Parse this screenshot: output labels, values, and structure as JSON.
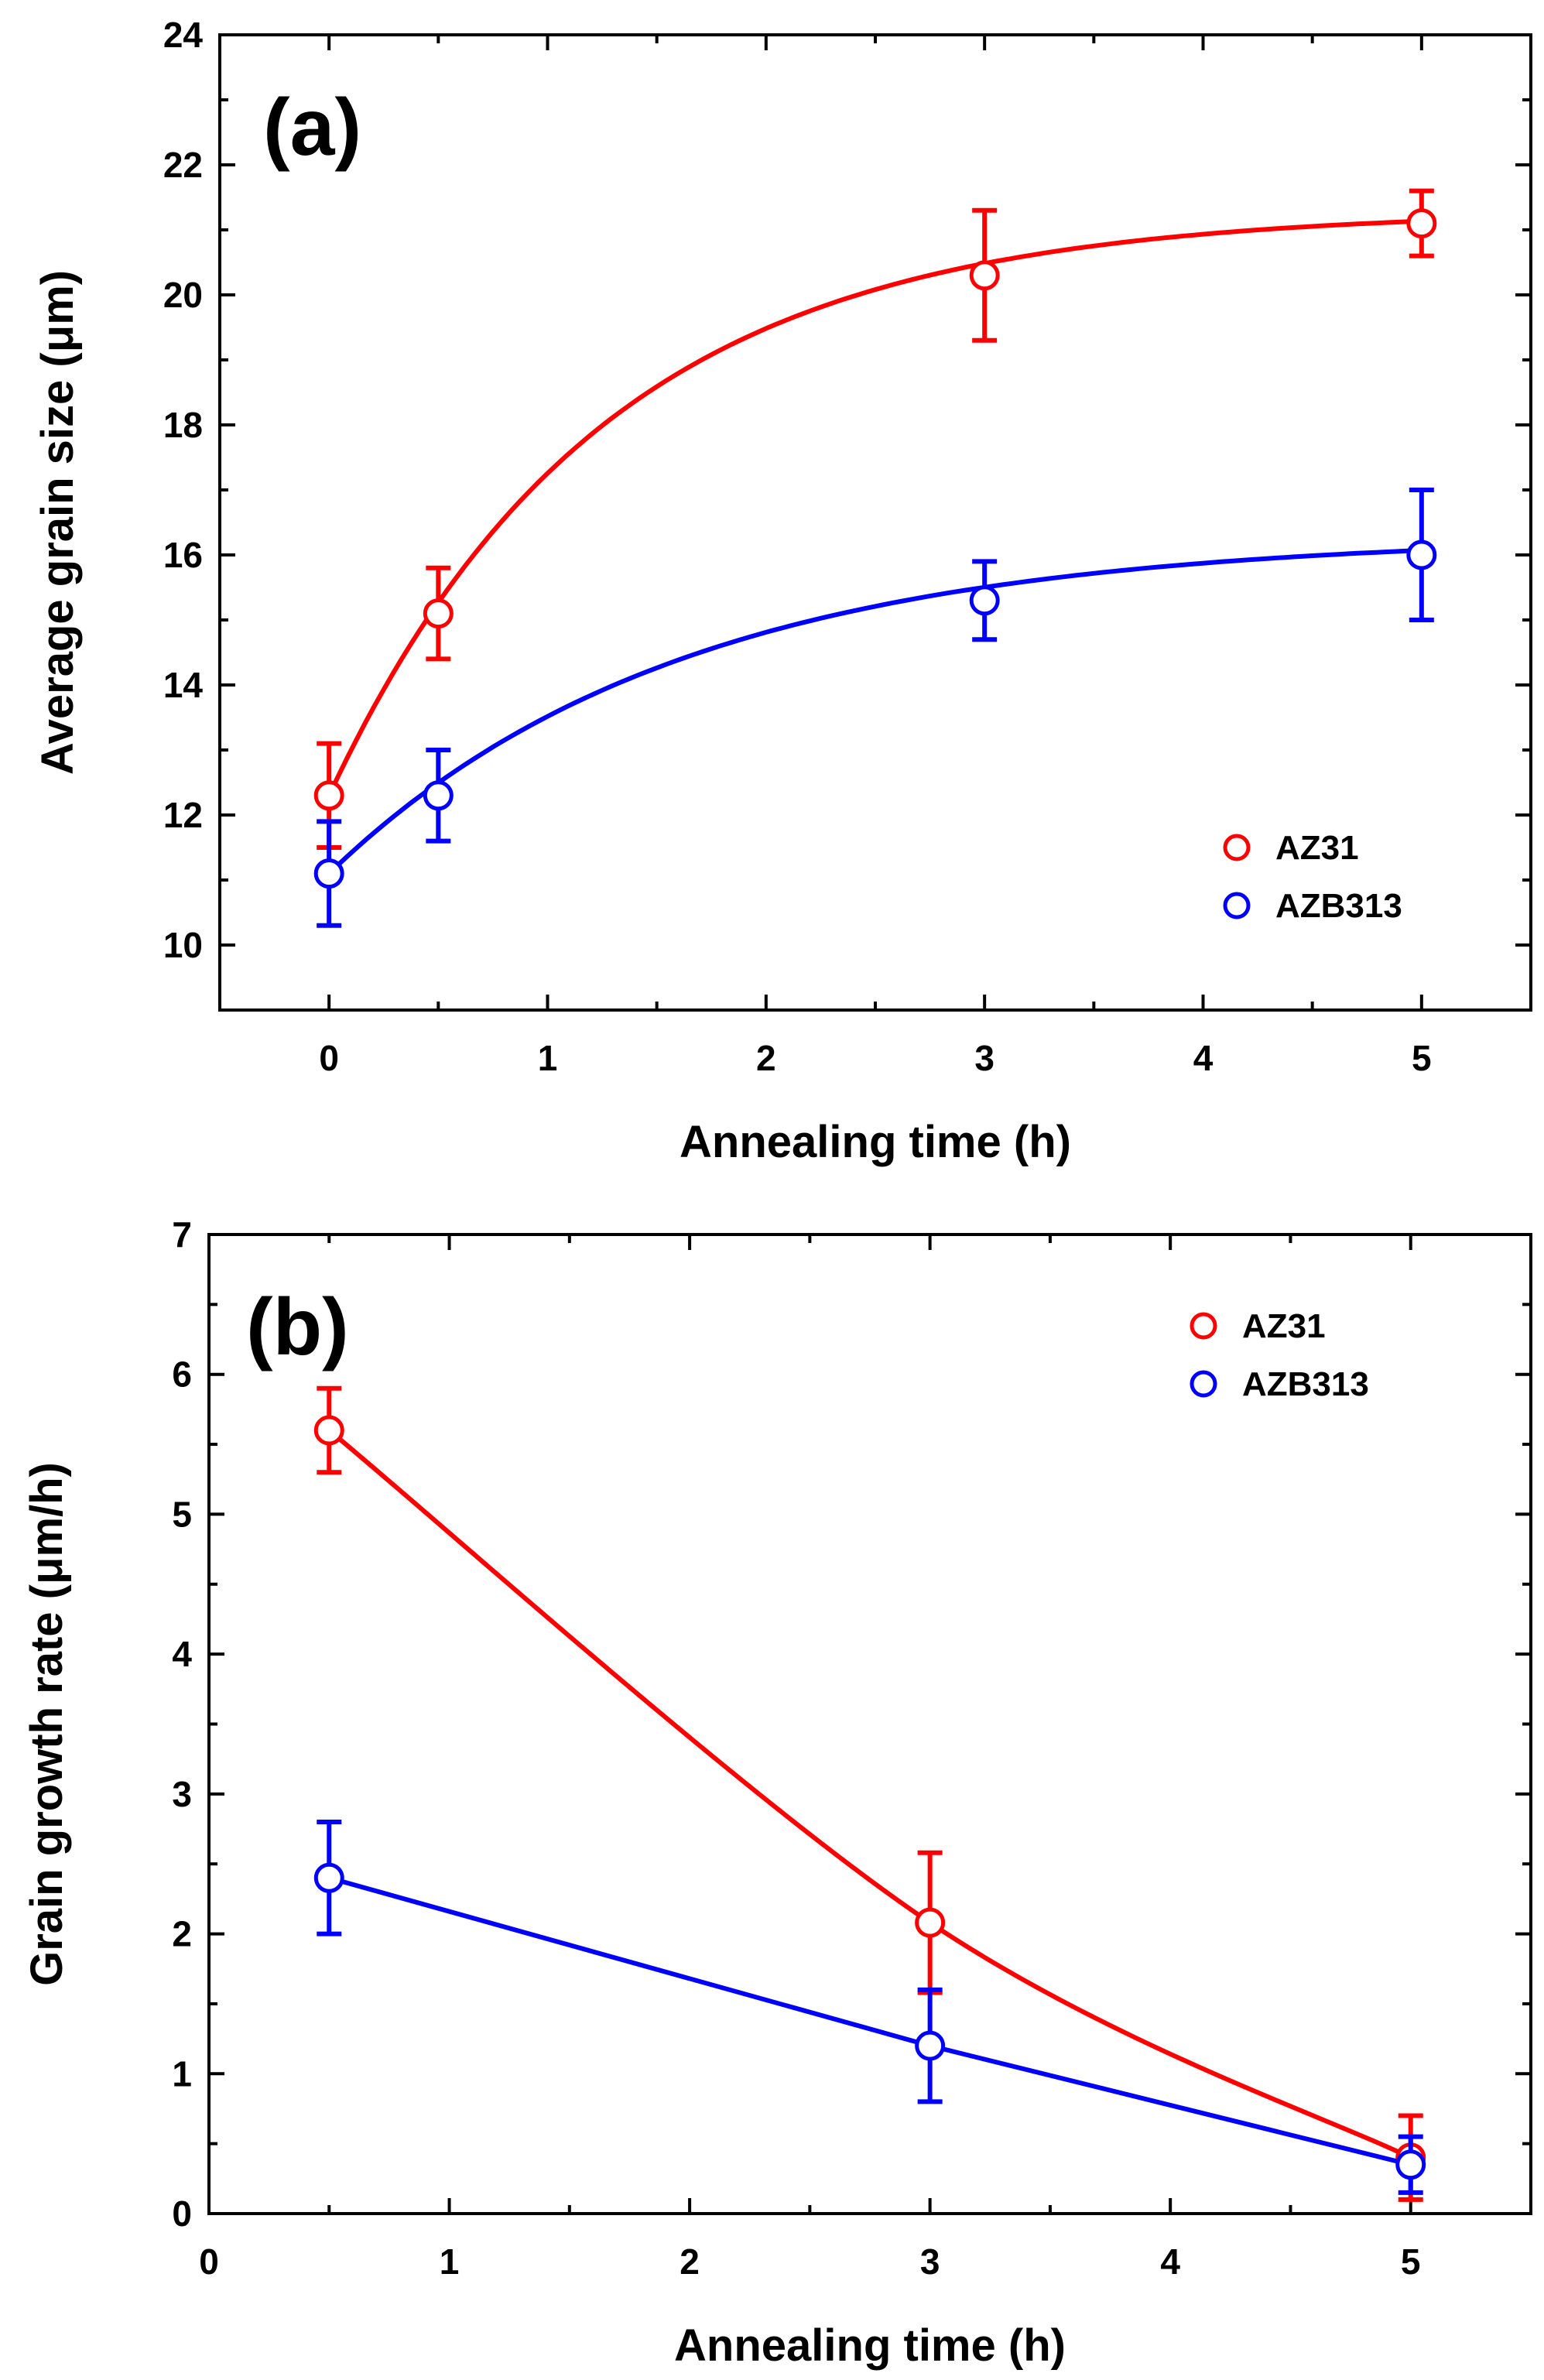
{
  "chart_data": [
    {
      "type": "scatter",
      "panel_label": "(a)",
      "xlabel": "Annealing time (h)",
      "ylabel": "Average grain size (μm)",
      "xlim": [
        -0.5,
        5.5
      ],
      "ylim": [
        9,
        24
      ],
      "xticks": [
        0,
        1,
        2,
        3,
        4,
        5
      ],
      "yticks": [
        10,
        12,
        14,
        16,
        18,
        20,
        22,
        24
      ],
      "grid": false,
      "legend_position": "lower-right",
      "series": [
        {
          "name": "AZ31",
          "color": "#ff0000",
          "marker": "open-circle",
          "x": [
            0,
            0.5,
            3,
            5
          ],
          "y": [
            12.3,
            15.1,
            20.3,
            21.1
          ],
          "yerr": [
            0.8,
            0.7,
            1.0,
            0.5
          ],
          "fit": {
            "kind": "exponential",
            "y0": 21.3,
            "A": 9.0,
            "tau": 1.25
          }
        },
        {
          "name": "AZB313",
          "color": "#0000ff",
          "marker": "open-circle",
          "x": [
            0,
            0.5,
            3,
            5
          ],
          "y": [
            11.1,
            12.3,
            15.3,
            16.0
          ],
          "yerr": [
            0.8,
            0.7,
            0.6,
            1.0
          ],
          "fit": {
            "kind": "exponential",
            "y0": 16.3,
            "A": 5.2,
            "tau": 1.6
          }
        }
      ]
    },
    {
      "type": "scatter",
      "panel_label": "(b)",
      "xlabel": "Annealing time (h)",
      "ylabel": "Grain growth rate (μm/h)",
      "xlim": [
        0,
        5.5
      ],
      "ylim": [
        0,
        7
      ],
      "xticks": [
        0,
        1,
        2,
        3,
        4,
        5
      ],
      "yticks": [
        0,
        1,
        2,
        3,
        4,
        5,
        6,
        7
      ],
      "grid": false,
      "legend_position": "top-right",
      "series": [
        {
          "name": "AZ31",
          "color": "#ff0000",
          "marker": "open-circle",
          "x": [
            0.5,
            3,
            5
          ],
          "y": [
            5.6,
            2.08,
            0.4
          ],
          "yerr": [
            0.3,
            0.5,
            0.3
          ],
          "fit": {
            "kind": "smooth"
          }
        },
        {
          "name": "AZB313",
          "color": "#0000ff",
          "marker": "open-circle",
          "x": [
            0.5,
            3,
            5
          ],
          "y": [
            2.4,
            1.2,
            0.35
          ],
          "yerr": [
            0.4,
            0.4,
            0.2
          ],
          "fit": {
            "kind": "linear-segments"
          }
        }
      ]
    }
  ]
}
